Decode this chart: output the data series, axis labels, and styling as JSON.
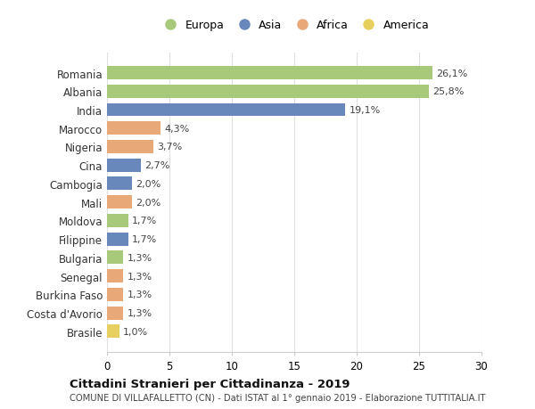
{
  "countries": [
    "Romania",
    "Albania",
    "India",
    "Marocco",
    "Nigeria",
    "Cina",
    "Cambogia",
    "Mali",
    "Moldova",
    "Filippine",
    "Bulgaria",
    "Senegal",
    "Burkina Faso",
    "Costa d'Avorio",
    "Brasile"
  ],
  "values": [
    26.1,
    25.8,
    19.1,
    4.3,
    3.7,
    2.7,
    2.0,
    2.0,
    1.7,
    1.7,
    1.3,
    1.3,
    1.3,
    1.3,
    1.0
  ],
  "labels": [
    "26,1%",
    "25,8%",
    "19,1%",
    "4,3%",
    "3,7%",
    "2,7%",
    "2,0%",
    "2,0%",
    "1,7%",
    "1,7%",
    "1,3%",
    "1,3%",
    "1,3%",
    "1,3%",
    "1,0%"
  ],
  "continents": [
    "Europa",
    "Europa",
    "Asia",
    "Africa",
    "Africa",
    "Asia",
    "Asia",
    "Africa",
    "Europa",
    "Asia",
    "Europa",
    "Africa",
    "Africa",
    "Africa",
    "America"
  ],
  "colors": {
    "Europa": "#a8c87a",
    "Asia": "#6888bb",
    "Africa": "#e8a878",
    "America": "#e8d060"
  },
  "xlim": [
    0,
    30
  ],
  "xticks": [
    0,
    5,
    10,
    15,
    20,
    25,
    30
  ],
  "legend_order": [
    "Europa",
    "Asia",
    "Africa",
    "America"
  ],
  "title": "Cittadini Stranieri per Cittadinanza - 2019",
  "subtitle": "COMUNE DI VILLAFALLETTO (CN) - Dati ISTAT al 1° gennaio 2019 - Elaborazione TUTTITALIA.IT",
  "background_color": "#ffffff",
  "grid_color": "#e0e0e0"
}
